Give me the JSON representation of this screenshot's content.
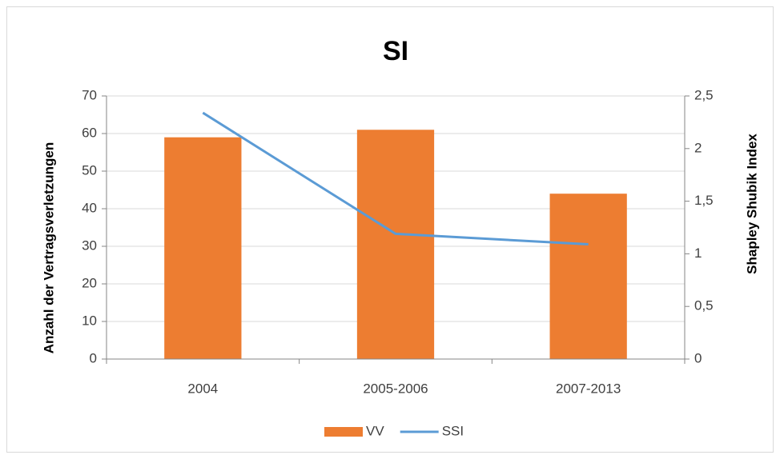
{
  "chart_data": {
    "type": "bar",
    "title": "SI",
    "y_label": "Anzahl der Vertragsverletzungen",
    "y2_label": "Shapley Shubik Index",
    "categories": [
      "2004",
      "2005-2006",
      "2007-2013"
    ],
    "series": [
      {
        "name": "VV",
        "type": "bar",
        "color": "#ed7d31",
        "values": [
          59,
          61,
          44
        ]
      },
      {
        "name": "SSI",
        "type": "line",
        "axis": "y2",
        "color": "#5b9bd5",
        "values": [
          2.34,
          1.19,
          1.09
        ]
      }
    ],
    "ylim": [
      0,
      70
    ],
    "yticks": [
      0,
      10,
      20,
      30,
      40,
      50,
      60,
      70
    ],
    "y2lim": [
      0,
      2.5
    ],
    "y2ticks": [
      0,
      {
        "value": 0.5,
        "label": "0,5"
      },
      1,
      {
        "value": 1.5,
        "label": "1,5"
      },
      2,
      {
        "value": 2.5,
        "label": "2,5"
      }
    ],
    "grid": true,
    "legend": "bottom"
  }
}
